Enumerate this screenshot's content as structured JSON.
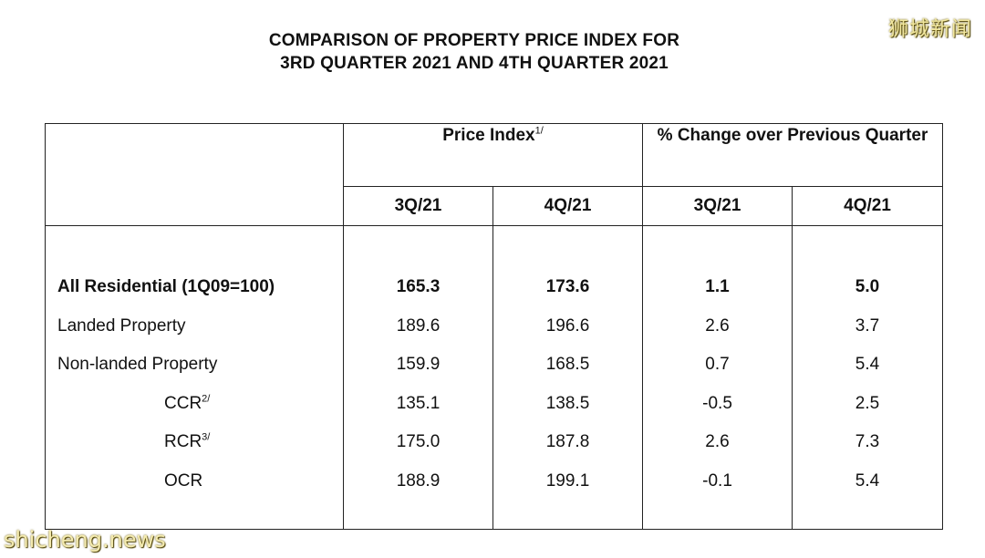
{
  "watermark_top_right": "狮城新闻",
  "watermark_bottom_left": "shicheng.news",
  "title": {
    "line1": "COMPARISON OF PROPERTY PRICE INDEX FOR",
    "line2": "3RD QUARTER 2021 AND 4TH QUARTER 2021"
  },
  "table": {
    "group_headers": {
      "price_index": "Price Index",
      "price_index_note": "1/",
      "pct_change": "% Change over Previous Quarter"
    },
    "sub_headers": [
      "3Q/21",
      "4Q/21",
      "3Q/21",
      "4Q/21"
    ],
    "rows": [
      {
        "label": "All Residential (1Q09=100)",
        "note": "",
        "pi_3q21": "165.3",
        "pi_4q21": "173.6",
        "chg_3q21": "1.1",
        "chg_4q21": "5.0"
      },
      {
        "label": "Landed Property",
        "note": "",
        "pi_3q21": "189.6",
        "pi_4q21": "196.6",
        "chg_3q21": "2.6",
        "chg_4q21": "3.7"
      },
      {
        "label": "Non-landed Property",
        "note": "",
        "pi_3q21": "159.9",
        "pi_4q21": "168.5",
        "chg_3q21": "0.7",
        "chg_4q21": "5.4"
      },
      {
        "label": "CCR",
        "note": "2/",
        "pi_3q21": "135.1",
        "pi_4q21": "138.5",
        "chg_3q21": "-0.5",
        "chg_4q21": "2.5"
      },
      {
        "label": "RCR",
        "note": "3/",
        "pi_3q21": "175.0",
        "pi_4q21": "187.8",
        "chg_3q21": "2.6",
        "chg_4q21": "7.3"
      },
      {
        "label": "OCR",
        "note": "",
        "pi_3q21": "188.9",
        "pi_4q21": "199.1",
        "chg_3q21": "-0.1",
        "chg_4q21": "5.4"
      }
    ]
  }
}
